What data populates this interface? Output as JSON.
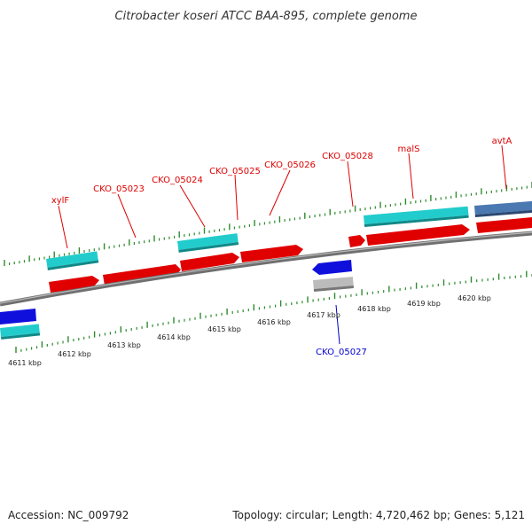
{
  "title": "Citrobacter koseri ATCC BAA-895, complete genome",
  "accession": "Accession: NC_009792",
  "topology": "Topology: circular; Length: 4,720,462 bp; Genes: 5,121",
  "colors": {
    "background": "#ffffff",
    "backbone": "#7a7a7a",
    "tick": "#2e8b2e",
    "cds_forward": "#e00000",
    "cds_reverse": "#1010dd",
    "gene_forward": "#22cccc",
    "gene_other": "#4a78b0",
    "gene_reverse": "#bbbbbb",
    "label_forward": "#dd0000",
    "label_reverse": "#0000cc"
  },
  "scale": {
    "unit": "kbp",
    "labels": [
      "4611 kbp",
      "4612 kbp",
      "4613 kbp",
      "4614 kbp",
      "4615 kbp",
      "4616 kbp",
      "4617 kbp",
      "4618 kbp",
      "4619 kbp",
      "4620 kbp"
    ]
  },
  "gene_labels": [
    {
      "text": "xylF",
      "strand": "forward"
    },
    {
      "text": "CKO_05023",
      "strand": "forward"
    },
    {
      "text": "CKO_05024",
      "strand": "forward"
    },
    {
      "text": "CKO_05025",
      "strand": "forward"
    },
    {
      "text": "CKO_05026",
      "strand": "forward"
    },
    {
      "text": "CKO_05028",
      "strand": "forward"
    },
    {
      "text": "malS",
      "strand": "forward"
    },
    {
      "text": "avtA",
      "strand": "forward"
    },
    {
      "text": "CKO_05027",
      "strand": "reverse"
    }
  ]
}
